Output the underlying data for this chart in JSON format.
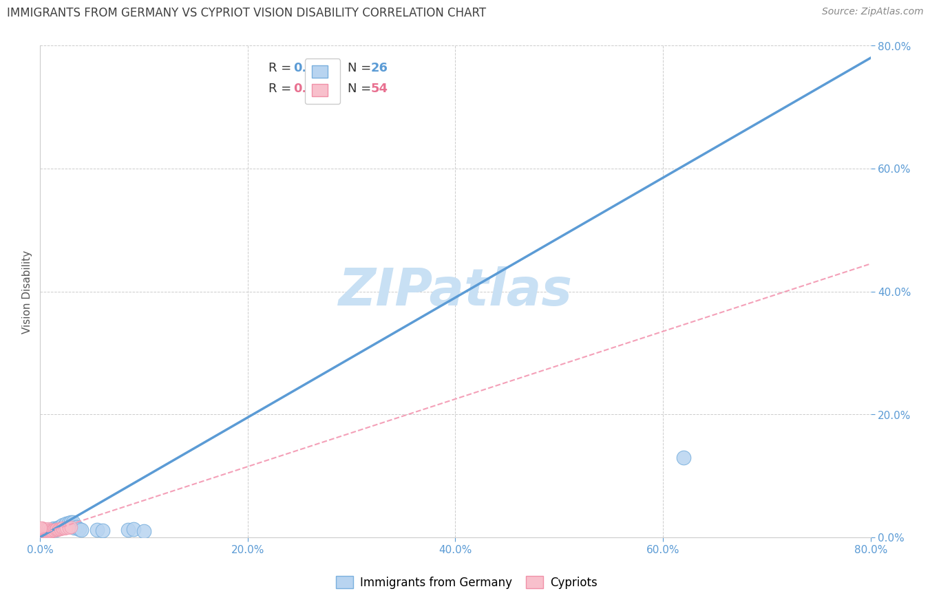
{
  "title": "IMMIGRANTS FROM GERMANY VS CYPRIOT VISION DISABILITY CORRELATION CHART",
  "source": "Source: ZipAtlas.com",
  "ylabel": "Vision Disability",
  "xlim": [
    0.0,
    0.8
  ],
  "ylim": [
    0.0,
    0.8
  ],
  "blue_R": 0.925,
  "blue_N": 26,
  "pink_R": 0.371,
  "pink_N": 54,
  "legend_label_blue": "Immigrants from Germany",
  "legend_label_pink": "Cypriots",
  "watermark": "ZIPatlas",
  "blue_scatter": [
    [
      0.003,
      0.005
    ],
    [
      0.005,
      0.009
    ],
    [
      0.007,
      0.012
    ],
    [
      0.01,
      0.01
    ],
    [
      0.012,
      0.013
    ],
    [
      0.013,
      0.014
    ],
    [
      0.015,
      0.012
    ],
    [
      0.017,
      0.015
    ],
    [
      0.018,
      0.016
    ],
    [
      0.02,
      0.018
    ],
    [
      0.022,
      0.02
    ],
    [
      0.024,
      0.019
    ],
    [
      0.025,
      0.022
    ],
    [
      0.028,
      0.023
    ],
    [
      0.03,
      0.025
    ],
    [
      0.032,
      0.024
    ],
    [
      0.033,
      0.016
    ],
    [
      0.035,
      0.017
    ],
    [
      0.038,
      0.013
    ],
    [
      0.04,
      0.012
    ],
    [
      0.055,
      0.012
    ],
    [
      0.06,
      0.011
    ],
    [
      0.085,
      0.012
    ],
    [
      0.09,
      0.013
    ],
    [
      0.62,
      0.13
    ],
    [
      0.1,
      0.01
    ]
  ],
  "pink_scatter": [
    [
      0.0005,
      0.003
    ],
    [
      0.001,
      0.004
    ],
    [
      0.001,
      0.006
    ],
    [
      0.001,
      0.008
    ],
    [
      0.001,
      0.01
    ],
    [
      0.001,
      0.012
    ],
    [
      0.002,
      0.005
    ],
    [
      0.002,
      0.007
    ],
    [
      0.002,
      0.009
    ],
    [
      0.002,
      0.011
    ],
    [
      0.002,
      0.013
    ],
    [
      0.002,
      0.015
    ],
    [
      0.003,
      0.006
    ],
    [
      0.003,
      0.008
    ],
    [
      0.003,
      0.01
    ],
    [
      0.003,
      0.012
    ],
    [
      0.003,
      0.014
    ],
    [
      0.004,
      0.007
    ],
    [
      0.004,
      0.009
    ],
    [
      0.004,
      0.011
    ],
    [
      0.004,
      0.013
    ],
    [
      0.005,
      0.008
    ],
    [
      0.005,
      0.01
    ],
    [
      0.005,
      0.012
    ],
    [
      0.006,
      0.009
    ],
    [
      0.006,
      0.011
    ],
    [
      0.006,
      0.013
    ],
    [
      0.007,
      0.008
    ],
    [
      0.007,
      0.01
    ],
    [
      0.007,
      0.012
    ],
    [
      0.008,
      0.009
    ],
    [
      0.008,
      0.011
    ],
    [
      0.008,
      0.014
    ],
    [
      0.009,
      0.01
    ],
    [
      0.009,
      0.012
    ],
    [
      0.01,
      0.009
    ],
    [
      0.01,
      0.011
    ],
    [
      0.011,
      0.01
    ],
    [
      0.012,
      0.011
    ],
    [
      0.013,
      0.012
    ],
    [
      0.014,
      0.011
    ],
    [
      0.015,
      0.012
    ],
    [
      0.016,
      0.013
    ],
    [
      0.017,
      0.012
    ],
    [
      0.018,
      0.013
    ],
    [
      0.019,
      0.014
    ],
    [
      0.02,
      0.013
    ],
    [
      0.021,
      0.014
    ],
    [
      0.022,
      0.015
    ],
    [
      0.024,
      0.014
    ],
    [
      0.025,
      0.016
    ],
    [
      0.028,
      0.015
    ],
    [
      0.03,
      0.017
    ],
    [
      0.0008,
      0.015
    ]
  ],
  "blue_line_color": "#5b9bd5",
  "pink_line_color": "#f4a0b8",
  "scatter_blue_facecolor": "#b8d4f0",
  "scatter_blue_edgecolor": "#7ab0de",
  "scatter_pink_facecolor": "#f8c0cc",
  "scatter_pink_edgecolor": "#f090a8",
  "grid_color": "#cccccc",
  "title_color": "#404040",
  "axis_tick_color": "#5b9bd5",
  "ylabel_color": "#555555",
  "source_color": "#888888",
  "watermark_color": "#c8e0f4",
  "blue_line_x": [
    0.0,
    0.8
  ],
  "blue_line_y": [
    0.0,
    0.78
  ],
  "pink_line_x": [
    0.0,
    0.8
  ],
  "pink_line_y": [
    0.005,
    0.445
  ],
  "xtick_vals": [
    0.0,
    0.2,
    0.4,
    0.6,
    0.8
  ],
  "xtick_labels": [
    "0.0%",
    "20.0%",
    "40.0%",
    "60.0%",
    "80.0%"
  ],
  "ytick_vals": [
    0.0,
    0.2,
    0.4,
    0.6,
    0.8
  ],
  "ytick_labels": [
    "0.0%",
    "20.0%",
    "40.0%",
    "60.0%",
    "80.0%"
  ]
}
